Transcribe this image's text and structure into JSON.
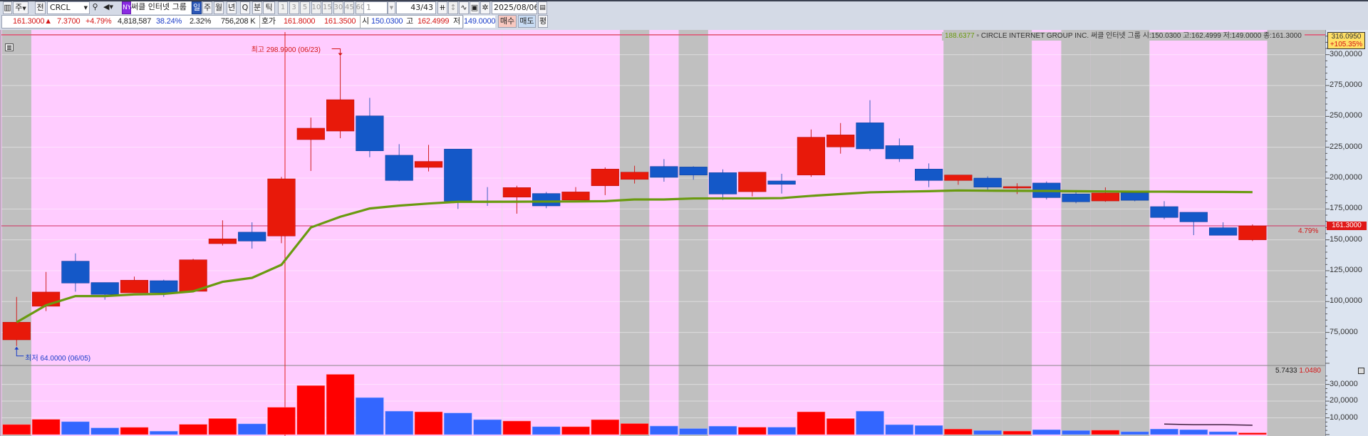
{
  "toolbar": {
    "market_dropdown": "주",
    "all_button": "전",
    "symbol": "CRCL",
    "exchange_badge": "NY",
    "stock_name": "써클 인터넷 그룹",
    "periods": [
      "일",
      "주",
      "월",
      "년",
      "Q",
      "분",
      "틱"
    ],
    "selected_period": "일",
    "intervals": [
      "1",
      "3",
      "5",
      "10",
      "15",
      "30",
      "45",
      "60"
    ],
    "interval_value": "1",
    "count": "43/43",
    "date": "2025/08/06"
  },
  "quote": {
    "price": "161.3000▲",
    "change": "7.3700",
    "change_pct": "+4.79%",
    "volume": "4,818,587",
    "volume_ratio": "38.24%",
    "turnover": "2.32%",
    "amount": "756,208 K",
    "hoga_label": "호가",
    "ask": "161.8000",
    "bid": "161.3500",
    "open_label": "시",
    "open": "150.0300",
    "high_label": "고",
    "high": "162.4999",
    "low_label": "저",
    "low": "149.0000",
    "buy_button": "매수",
    "sell_button": "매도",
    "avg_button": "평"
  },
  "legend": {
    "ma_value": "188.6377",
    "company": "CIRCLE INTERNET GROUP INC.",
    "company_kr": "써클 인터넷 그룹",
    "ohlc": "시:150.0300 고:162.4999 저:149.0000 종:161.3000"
  },
  "labels": {
    "max_price": "316.0950",
    "max_pct": "+105.35%",
    "current_price": "161.3000",
    "current_pct": "4.79%",
    "high_note": "최고 298.9900 (06/23)",
    "low_note": "최저 64.0000 (06/05)",
    "volume_ma": "5.7433",
    "volume_last": "1.0480"
  },
  "colors": {
    "up": "#e8190a",
    "down": "#1458c8",
    "vol_up": "#ff0000",
    "vol_down": "#3366ff",
    "ma": "#6a9a10",
    "bg": "#ffccff",
    "shade": "#c0c0c0",
    "axis_bg": "#dce4f0"
  },
  "chart_data": {
    "type": "candlestick",
    "ylim": [
      48.8,
      318.3
    ],
    "y_ticks": [
      300,
      275,
      250,
      225,
      200,
      175,
      150,
      125,
      100,
      75
    ],
    "y_tick_labels": [
      "300,0000",
      "275,0000",
      "250,0000",
      "225,0000",
      "200,0000",
      "175,0000",
      "150,0000",
      "125,0000",
      "100,0000",
      "75,0000"
    ],
    "open": [
      69.0,
      96.2,
      132.7,
      115.4,
      107.1,
      116.9,
      108.3,
      146.9,
      156.2,
      153.1,
      231.2,
      238.1,
      250.4,
      218.5,
      208.7,
      223.5,
      181.5,
      184.6,
      187.5,
      182.3,
      193.8,
      199.0,
      209.4,
      209.0,
      204.4,
      189.0,
      197.7,
      202.5,
      225.2,
      244.8,
      226.3,
      207.3,
      198.1,
      200.0,
      192.1,
      196.0,
      187.1,
      181.5,
      188.0,
      176.9,
      172.3,
      159.8,
      150.03
    ],
    "high": [
      103.75,
      124.0,
      139.0,
      115.4,
      120.2,
      117.7,
      134.6,
      165.8,
      164.2,
      201.0,
      249.0,
      298.99,
      265.0,
      227.5,
      226.9,
      223.5,
      192.7,
      193.8,
      188.8,
      192.7,
      208.7,
      210.0,
      215.4,
      209.6,
      207.1,
      204.8,
      203.5,
      239.4,
      244.6,
      263.1,
      232.1,
      211.9,
      202.5,
      201.5,
      195.8,
      197.3,
      190.0,
      192.5,
      188.0,
      181.3,
      172.3,
      164.2,
      162.4999
    ],
    "low": [
      64.0,
      92.3,
      108.0,
      101.5,
      107.1,
      103.8,
      108.3,
      145.4,
      142.9,
      147.3,
      205.8,
      232.3,
      216.9,
      197.5,
      205.4,
      175.0,
      177.5,
      171.2,
      175.6,
      182.3,
      186.2,
      195.6,
      197.1,
      198.7,
      182.3,
      185.2,
      187.5,
      201.0,
      219.8,
      221.9,
      213.1,
      192.7,
      194.6,
      190.2,
      187.1,
      182.7,
      179.6,
      180.8,
      181.2,
      166.7,
      153.8,
      153.7,
      149.0
    ],
    "close": [
      83.23,
      107.7,
      115.0,
      105.8,
      117.3,
      107.3,
      133.8,
      150.8,
      149.0,
      199.4,
      240.4,
      263.5,
      222.1,
      198.1,
      213.5,
      181.3,
      181.0,
      192.3,
      177.5,
      188.8,
      207.3,
      204.8,
      200.6,
      202.5,
      187.1,
      204.8,
      195.0,
      233.1,
      235.0,
      223.7,
      215.6,
      198.1,
      202.5,
      192.7,
      193.1,
      184.2,
      180.8,
      187.9,
      182.0,
      168.1,
      164.6,
      153.7,
      161.3
    ],
    "ma": [
      83.2,
      97.0,
      104.4,
      104.4,
      105.8,
      106.2,
      108.3,
      116.0,
      119.2,
      129.8,
      160.0,
      168.7,
      175.4,
      177.7,
      179.4,
      180.8,
      180.8,
      180.9,
      181.0,
      181.1,
      181.3,
      182.7,
      182.7,
      183.5,
      183.6,
      183.6,
      183.8,
      185.6,
      187.1,
      188.5,
      189.0,
      189.4,
      190.0,
      189.8,
      189.7,
      189.6,
      189.4,
      189.2,
      189.0,
      189.0,
      188.9,
      188.8,
      188.64
    ],
    "volume_ylim": [
      0,
      40.9
    ],
    "volume_ticks": [
      30,
      20,
      10
    ],
    "volume_tick_labels": [
      "30,0000",
      "20,0000",
      "10,0000"
    ],
    "volume": [
      6.0,
      9.1,
      7.7,
      4.0,
      4.3,
      2.0,
      6.1,
      9.6,
      6.4,
      16.3,
      29.3,
      36.0,
      22.1,
      14.0,
      13.6,
      12.9,
      8.9,
      8.1,
      4.7,
      4.7,
      8.9,
      6.6,
      5.1,
      3.6,
      5.0,
      4.4,
      4.4,
      13.6,
      9.6,
      14.0,
      5.9,
      5.4,
      3.3,
      2.4,
      2.1,
      2.9,
      2.4,
      2.6,
      1.7,
      3.3,
      2.9,
      1.7,
      1.05
    ],
    "volume_ma_partial": [
      6.3,
      5.9,
      5.9,
      5.6
    ],
    "shaded_candles": [
      0,
      21,
      23,
      32,
      33,
      34,
      36,
      37,
      38
    ],
    "max_price": 316.095,
    "current_price": 161.3,
    "crosshair_index": 9
  }
}
